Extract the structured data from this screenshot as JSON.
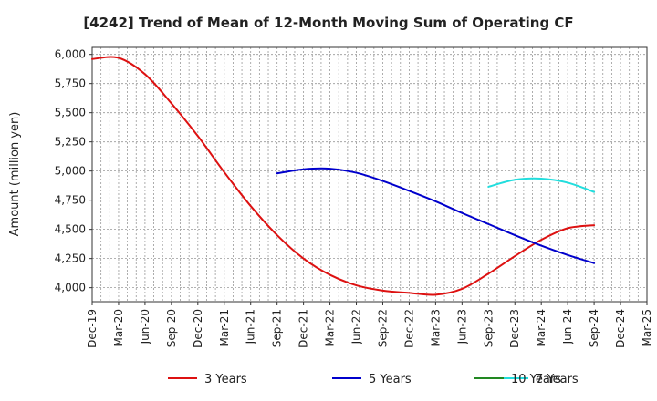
{
  "chart_data": {
    "type": "line",
    "title": "[4242]  Trend of Mean of 12-Month Moving Sum of Operating CF",
    "xlabel": "",
    "ylabel": "Amount (million yen)",
    "ylim": [
      3880,
      6060
    ],
    "yticks": [
      4000,
      4250,
      4500,
      4750,
      5000,
      5250,
      5500,
      5750,
      6000
    ],
    "ytick_labels": [
      "4,000",
      "4,250",
      "4,500",
      "4,750",
      "5,000",
      "5,250",
      "5,500",
      "5,750",
      "6,000"
    ],
    "x_start_month_index": 0,
    "x_end_month_index": 63,
    "x_tick_labels": [
      "Dec-19",
      "Mar-20",
      "Jun-20",
      "Sep-20",
      "Dec-20",
      "Mar-21",
      "Jun-21",
      "Sep-21",
      "Dec-21",
      "Mar-22",
      "Jun-22",
      "Sep-22",
      "Dec-22",
      "Mar-23",
      "Jun-23",
      "Sep-23",
      "Dec-23",
      "Mar-24",
      "Jun-24",
      "Sep-24",
      "Dec-24",
      "Mar-25"
    ],
    "series": [
      {
        "name": "3 Years",
        "color": "#dd1111",
        "x": [
          0,
          3,
          6,
          9,
          12,
          15,
          18,
          21,
          24,
          27,
          30,
          33,
          36,
          39,
          42,
          45,
          48,
          51,
          54,
          57
        ],
        "values": [
          5960,
          5970,
          5830,
          5580,
          5300,
          4990,
          4700,
          4450,
          4250,
          4110,
          4020,
          3975,
          3955,
          3940,
          3990,
          4120,
          4270,
          4410,
          4510,
          4535
        ]
      },
      {
        "name": "5 Years",
        "color": "#0000cc",
        "x": [
          21,
          24,
          27,
          30,
          33,
          36,
          39,
          42,
          45,
          48,
          51,
          54,
          57
        ],
        "values": [
          4980,
          5015,
          5020,
          4985,
          4915,
          4830,
          4740,
          4640,
          4545,
          4450,
          4360,
          4280,
          4210
        ]
      },
      {
        "name": "7 Years",
        "color": "#22dddd",
        "x": [
          45,
          48,
          51,
          54,
          57
        ],
        "values": [
          4865,
          4925,
          4935,
          4900,
          4820
        ]
      },
      {
        "name": "10 Years",
        "color": "#228822",
        "x": [],
        "values": []
      }
    ]
  }
}
